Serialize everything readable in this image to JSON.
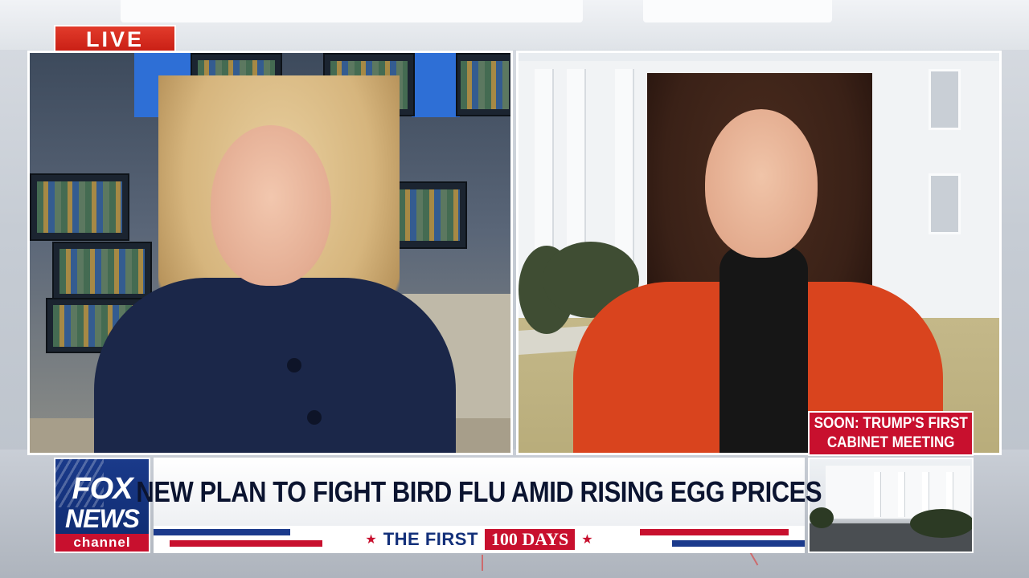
{
  "live_badge": {
    "label": "LIVE"
  },
  "network": {
    "line1": "FOX",
    "line2": "NEWS",
    "line3": "channel"
  },
  "headline": {
    "text": "NEW PLAN TO FIGHT BIRD FLU AMID RISING EGG PRICES"
  },
  "ticker": {
    "star_left": "★",
    "label": "THE FIRST",
    "badge": "100 DAYS",
    "star_right": "★"
  },
  "soon_box": {
    "line1": "SOON: TRUMP'S FIRST",
    "line2": "CABINET MEETING"
  },
  "colors": {
    "accent_red": "#c8102e",
    "navy": "#0b1430",
    "fox_blue": "#1a3a8a"
  }
}
